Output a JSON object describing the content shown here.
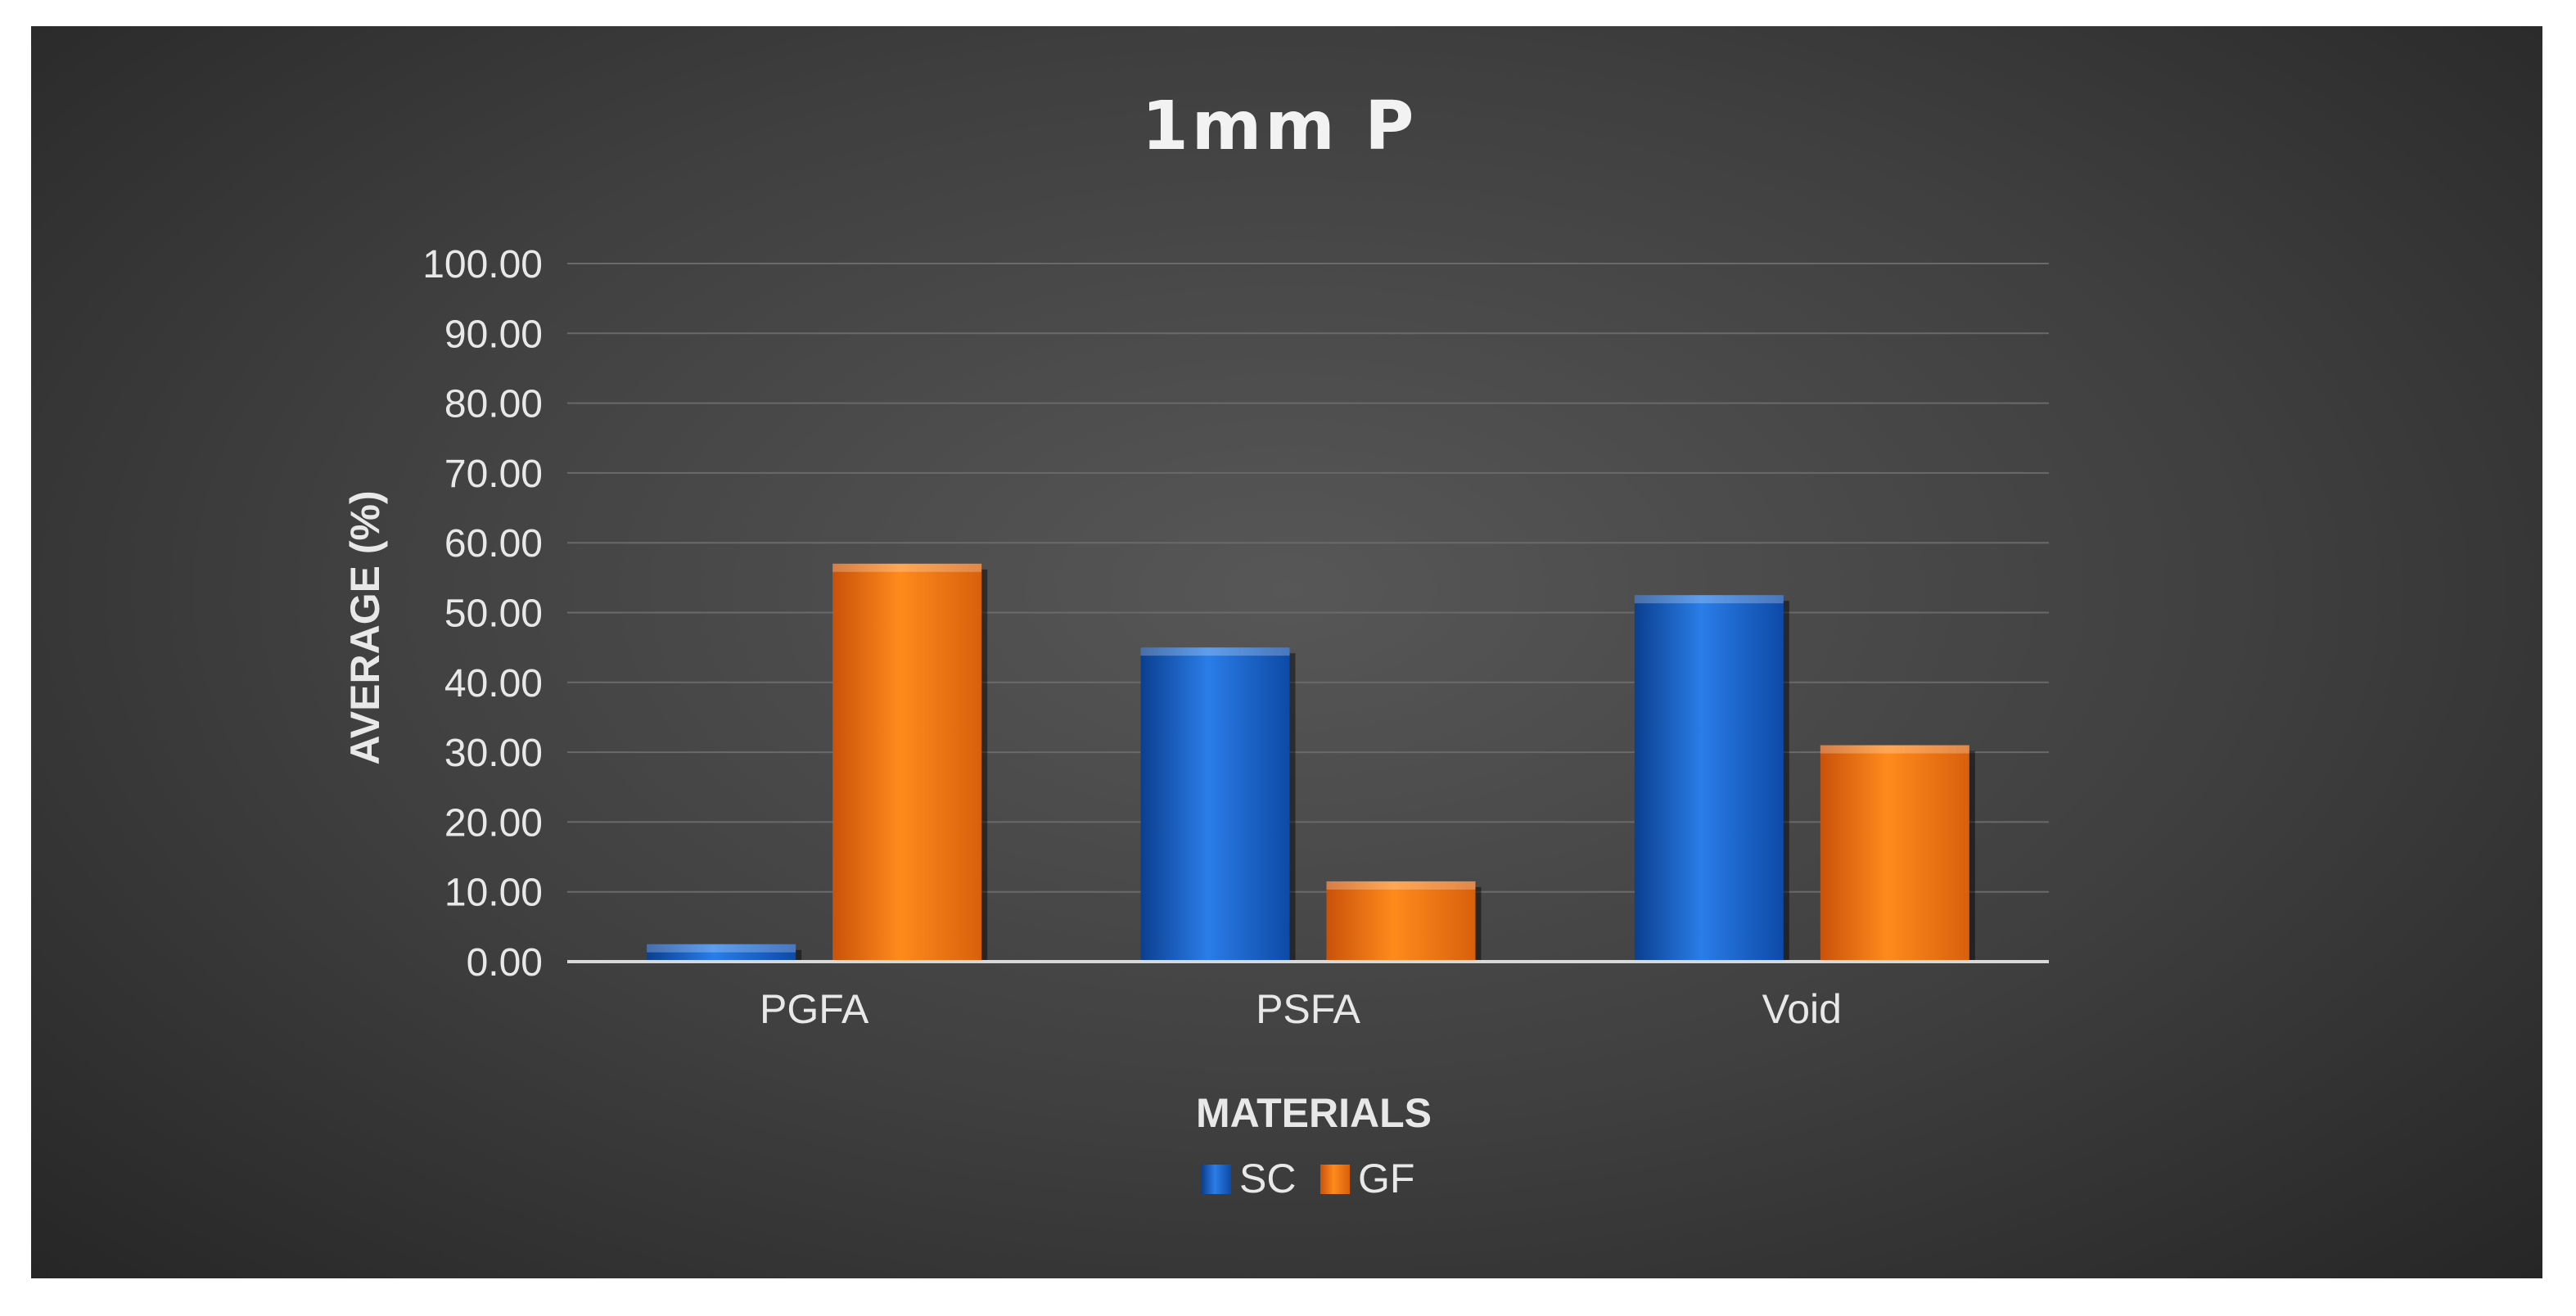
{
  "chart_data": {
    "type": "bar",
    "title": "1mm P",
    "xlabel": "MATERIALS",
    "ylabel": "AVERAGE (%)",
    "categories": [
      "PGFA",
      "PSFA",
      "Void"
    ],
    "series": [
      {
        "name": "SC",
        "values": [
          2.5,
          45.0,
          52.5
        ],
        "color": "#1f6fd6"
      },
      {
        "name": "GF",
        "values": [
          57.0,
          11.5,
          31.0
        ],
        "color": "#f57a10"
      }
    ],
    "ylim": [
      0,
      100
    ],
    "yticks": [
      "0.00",
      "10.00",
      "20.00",
      "30.00",
      "40.00",
      "50.00",
      "60.00",
      "70.00",
      "80.00",
      "90.00",
      "100.00"
    ],
    "grid": true,
    "legend": "bottom-center"
  }
}
